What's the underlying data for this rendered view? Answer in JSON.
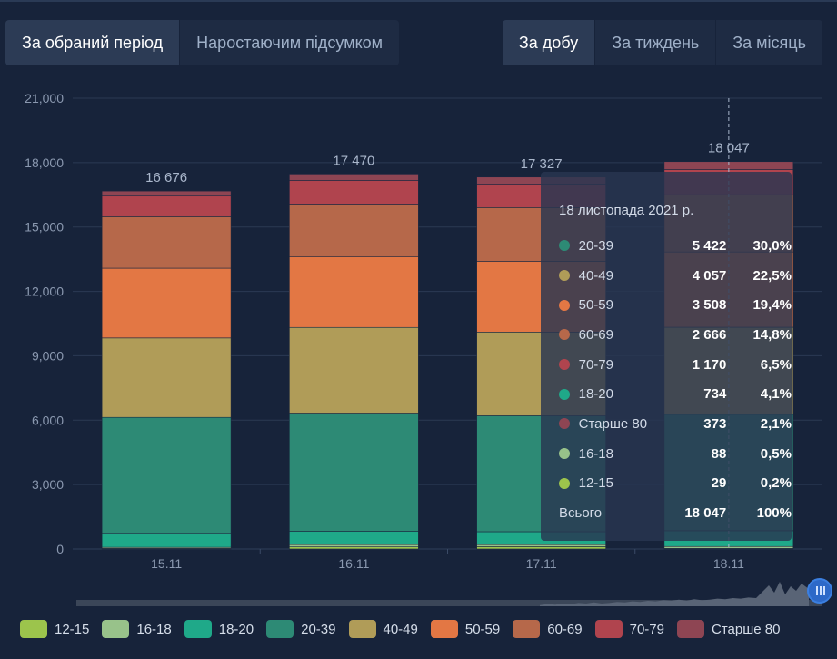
{
  "toggles_left": [
    {
      "label": "За обраний період",
      "active": true
    },
    {
      "label": "Наростаючим підсумком",
      "active": false
    }
  ],
  "toggles_right": [
    {
      "label": "За добу",
      "active": true
    },
    {
      "label": "За тиждень",
      "active": false
    },
    {
      "label": "За місяць",
      "active": false
    }
  ],
  "colors": {
    "12-15": "#9cc44c",
    "16-18": "#98c28a",
    "18-20": "#1fa989",
    "20-39": "#2d8a75",
    "40-49": "#b09c58",
    "50-59": "#e37744",
    "60-69": "#b6684a",
    "70-79": "#b0444e",
    "Старше 80": "#8e4553"
  },
  "chart_data": {
    "type": "bar",
    "stacked": true,
    "categories": [
      "15.11",
      "16.11",
      "17.11",
      "18.11"
    ],
    "ylim": [
      0,
      21000
    ],
    "yticks": [
      "0",
      "3,000",
      "6,000",
      "9,000",
      "12,000",
      "15,000",
      "18,000",
      "21,000"
    ],
    "totals_labels": [
      "16 676",
      "17 470",
      "17 327",
      "18 047"
    ],
    "series": [
      {
        "name": "12-15",
        "values": [
          30,
          100,
          110,
          29
        ]
      },
      {
        "name": "16-18",
        "values": [
          50,
          110,
          95,
          88
        ]
      },
      {
        "name": "18-20",
        "values": [
          650,
          620,
          600,
          734
        ]
      },
      {
        "name": "20-39",
        "values": [
          5400,
          5500,
          5400,
          5422
        ]
      },
      {
        "name": "40-49",
        "values": [
          3700,
          3990,
          3900,
          4057
        ]
      },
      {
        "name": "50-59",
        "values": [
          3250,
          3300,
          3300,
          3508
        ]
      },
      {
        "name": "60-69",
        "values": [
          2400,
          2450,
          2500,
          2666
        ]
      },
      {
        "name": "70-79",
        "values": [
          960,
          1100,
          1100,
          1170
        ]
      },
      {
        "name": "Старше 80",
        "values": [
          236,
          300,
          322,
          373
        ]
      }
    ],
    "grid": true,
    "legend_position": "bottom"
  },
  "tooltip": {
    "date": "18 листопада 2021 р.",
    "rows": [
      {
        "name": "20-39",
        "value": "5 422",
        "pct": "30,0%",
        "color": "#2d8a75"
      },
      {
        "name": "40-49",
        "value": "4 057",
        "pct": "22,5%",
        "color": "#b09c58"
      },
      {
        "name": "50-59",
        "value": "3 508",
        "pct": "19,4%",
        "color": "#e37744"
      },
      {
        "name": "60-69",
        "value": "2 666",
        "pct": "14,8%",
        "color": "#b6684a"
      },
      {
        "name": "70-79",
        "value": "1 170",
        "pct": "6,5%",
        "color": "#b0444e"
      },
      {
        "name": "18-20",
        "value": "734",
        "pct": "4,1%",
        "color": "#1fa989"
      },
      {
        "name": "Старше 80",
        "value": "373",
        "pct": "2,1%",
        "color": "#8e4553"
      },
      {
        "name": "16-18",
        "value": "88",
        "pct": "0,5%",
        "color": "#98c28a"
      },
      {
        "name": "12-15",
        "value": "29",
        "pct": "0,2%",
        "color": "#9cc44c"
      }
    ],
    "total_label": "Всього",
    "total_value": "18 047",
    "total_pct": "100%"
  }
}
